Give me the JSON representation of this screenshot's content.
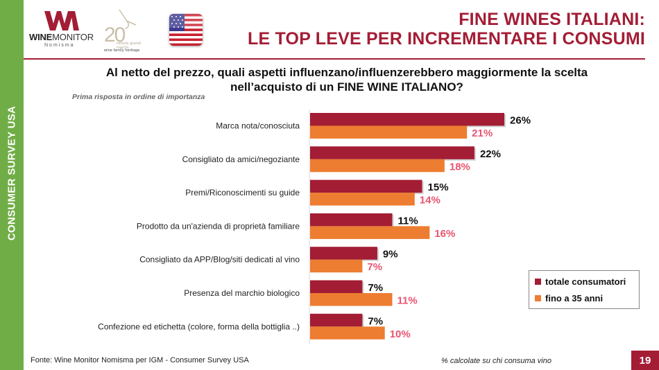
{
  "sidebar": {
    "label": "CONSUMER SURVEY USA"
  },
  "logos": {
    "winemonitor": {
      "brand_bold": "WINE",
      "brand_rest": "MONITOR",
      "sub": "Nomisma"
    },
    "anniversary": {
      "number": "20",
      "line1": "istituto grandi marchi",
      "line2": "wine family heritage"
    },
    "flag": "usa-flag"
  },
  "header": {
    "title_line1": "FINE WINES ITALIANI:",
    "title_line2": "LE TOP LEVE PER INCREMENTARE I CONSUMI"
  },
  "question": {
    "line1": "Al netto del prezzo, quali aspetti influenzano/influenzerebbero maggiormente la scelta",
    "line2": "nell’acquisto di un FINE WINE ITALIANO?"
  },
  "subnote": "Prima risposta in ordine di importanza",
  "colors": {
    "accent": "#a31d35",
    "sidebar": "#70ad47",
    "total_bar": "#a31d35",
    "young_bar": "#ed7d31",
    "young_label": "#e8546f"
  },
  "chart_data": {
    "type": "bar",
    "orientation": "horizontal",
    "title": "Al netto del prezzo, quali aspetti influenzano/influenzerebbero maggiormente la scelta nell’acquisto di un FINE WINE ITALIANO?",
    "subtitle": "Prima risposta in ordine di importanza",
    "categories": [
      "Marca nota/conosciuta",
      "Consigliato da amici/negoziante",
      "Premi/Riconoscimenti su guide",
      "Prodotto da un'azienda di proprietà familiare",
      "Consigliato da APP/Blog/siti dedicati al vino",
      "Presenza del marchio biologico",
      "Confezione ed etichetta (colore, forma della bottiglia ..)"
    ],
    "series": [
      {
        "name": "totale consumatori",
        "values": [
          26,
          22,
          15,
          11,
          9,
          7,
          7
        ],
        "labels": [
          "26%",
          "22%",
          "15%",
          "11%",
          "9%",
          "7%",
          "7%"
        ]
      },
      {
        "name": "fino a 35 anni",
        "values": [
          21,
          18,
          14,
          16,
          7,
          11,
          10
        ],
        "labels": [
          "21%",
          "18%",
          "14%",
          "16%",
          "7%",
          "11%",
          "10%"
        ]
      }
    ],
    "unit": "%",
    "xlim": [
      0,
      30
    ],
    "grid": false,
    "legend": "bottom-right"
  },
  "legend": {
    "items": [
      {
        "label": "totale consumatori"
      },
      {
        "label": "fino a 35 anni"
      }
    ]
  },
  "footer": {
    "source": "Fonte: Wine Monitor Nomisma per IGM - Consumer Survey USA",
    "note": "% calcolate su chi consuma vino",
    "page_number": "19"
  }
}
